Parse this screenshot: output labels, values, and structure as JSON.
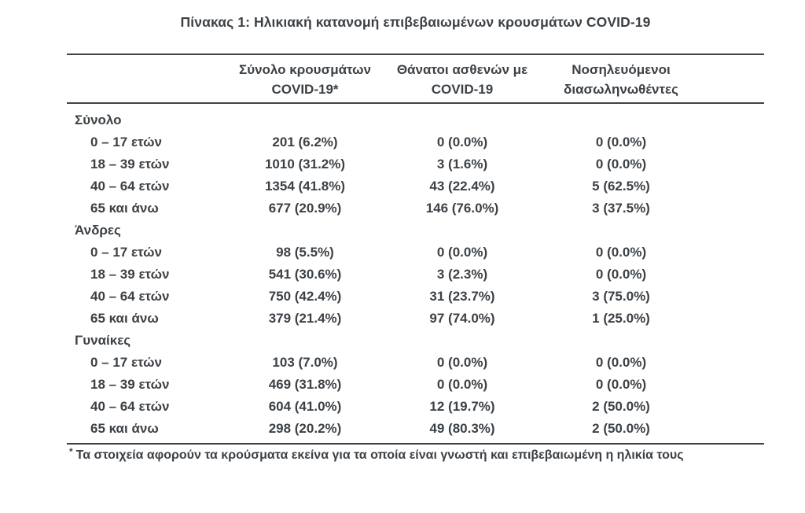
{
  "page": {
    "title": "Πίνακας 1: Ηλικιακή κατανομή επιβεβαιωμένων κρουσμάτων COVID-19"
  },
  "colors": {
    "text": "#3c4146",
    "rule_line": "#3f4347",
    "background": "#ffffff"
  },
  "table": {
    "columns": [
      {
        "line1": "Σύνολο κρουσμάτων",
        "line2": "COVID-19*"
      },
      {
        "line1": "Θάνατοι ασθενών με",
        "line2": "COVID-19"
      },
      {
        "line1": "Νοσηλευόμενοι",
        "line2": "διασωληνωθέντες"
      }
    ],
    "sections": [
      {
        "label": "Σύνολο",
        "rows": [
          {
            "label": "0 – 17 ετών",
            "cases": "201 (6.2%)",
            "deaths": "0 (0.0%)",
            "intubated": "0 (0.0%)"
          },
          {
            "label": "18 – 39 ετών",
            "cases": "1010 (31.2%)",
            "deaths": "3 (1.6%)",
            "intubated": "0 (0.0%)"
          },
          {
            "label": "40 – 64 ετών",
            "cases": "1354 (41.8%)",
            "deaths": "43 (22.4%)",
            "intubated": "5 (62.5%)"
          },
          {
            "label": "65 και άνω",
            "cases": "677 (20.9%)",
            "deaths": "146 (76.0%)",
            "intubated": "3 (37.5%)"
          }
        ]
      },
      {
        "label": "Άνδρες",
        "rows": [
          {
            "label": "0 – 17 ετών",
            "cases": "98 (5.5%)",
            "deaths": "0 (0.0%)",
            "intubated": "0 (0.0%)"
          },
          {
            "label": "18 – 39 ετών",
            "cases": "541 (30.6%)",
            "deaths": "3 (2.3%)",
            "intubated": "0 (0.0%)"
          },
          {
            "label": "40 – 64 ετών",
            "cases": "750 (42.4%)",
            "deaths": "31 (23.7%)",
            "intubated": "3 (75.0%)"
          },
          {
            "label": "65 και άνω",
            "cases": "379 (21.4%)",
            "deaths": "97 (74.0%)",
            "intubated": "1 (25.0%)"
          }
        ]
      },
      {
        "label": "Γυναίκες",
        "rows": [
          {
            "label": "0 – 17 ετών",
            "cases": "103 (7.0%)",
            "deaths": "0 (0.0%)",
            "intubated": "0 (0.0%)"
          },
          {
            "label": "18 – 39 ετών",
            "cases": "469 (31.8%)",
            "deaths": "0 (0.0%)",
            "intubated": "0 (0.0%)"
          },
          {
            "label": "40 – 64 ετών",
            "cases": "604 (41.0%)",
            "deaths": "12 (19.7%)",
            "intubated": "2 (50.0%)"
          },
          {
            "label": "65 και άνω",
            "cases": "298 (20.2%)",
            "deaths": "49 (80.3%)",
            "intubated": "2 (50.0%)"
          }
        ]
      }
    ],
    "footnote_marker": "*",
    "footnote": "Τα στοιχεία αφορούν τα κρούσματα εκείνα για τα οποία είναι γνωστή και επιβεβαιωμένη η ηλικία τους"
  }
}
